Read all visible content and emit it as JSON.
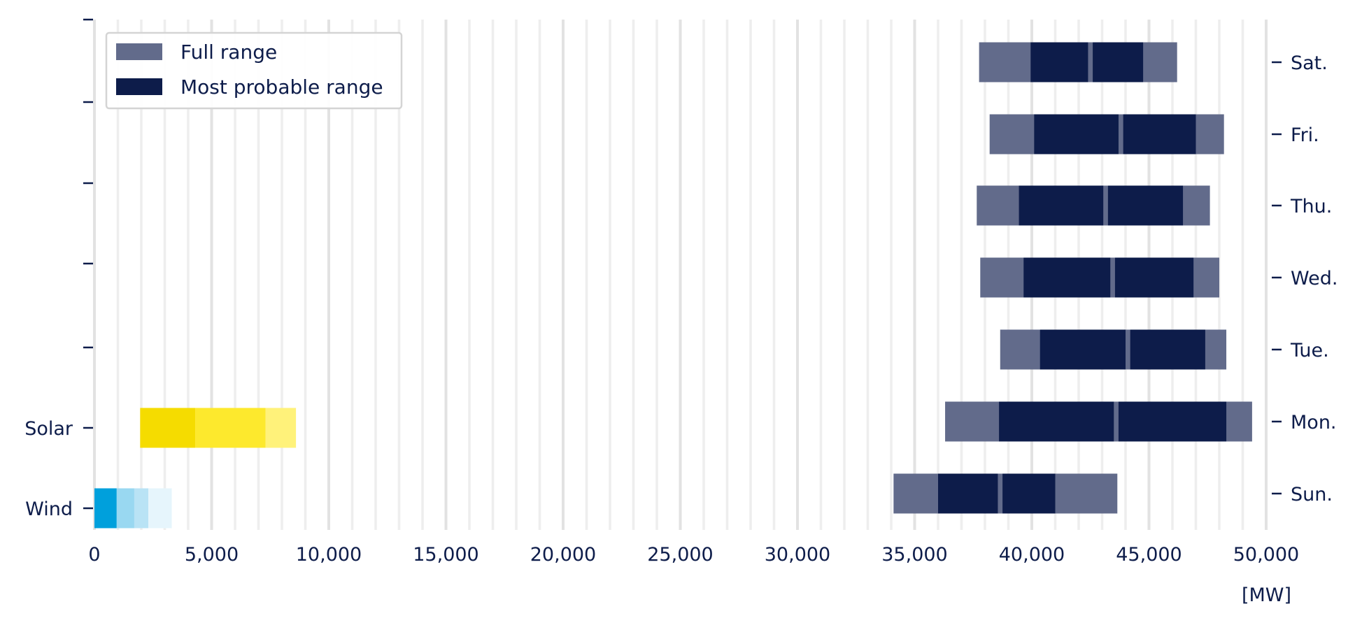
{
  "chart_data": {
    "type": "bar",
    "orientation": "horizontal",
    "xlabel": "[MW]",
    "xlim": [
      0,
      50000
    ],
    "xticks": [
      0,
      5000,
      10000,
      15000,
      20000,
      25000,
      30000,
      35000,
      40000,
      45000,
      50000
    ],
    "xtick_labels": [
      "0",
      "5,000",
      "10,000",
      "15,000",
      "20,000",
      "25,000",
      "30,000",
      "35,000",
      "40,000",
      "45,000",
      "50,000"
    ],
    "grid": true,
    "legend": {
      "placement": "top-left",
      "entries": [
        {
          "label": "Full range",
          "color": "#626b8b"
        },
        {
          "label": "Most probable range",
          "color": "#0d1c4a"
        }
      ]
    },
    "left_categories": [
      "Wind",
      "Solar"
    ],
    "right_categories": [
      "Sun.",
      "Mon.",
      "Tue.",
      "Wed.",
      "Thu.",
      "Fri.",
      "Sat."
    ],
    "renewables": [
      {
        "name": "Wind",
        "segments": [
          {
            "from": 0,
            "to": 950,
            "color": "#00a0dc"
          },
          {
            "from": 950,
            "to": 1700,
            "color": "#99d8f1"
          },
          {
            "from": 1700,
            "to": 2300,
            "color": "#b9e3f5"
          },
          {
            "from": 2300,
            "to": 3300,
            "color": "#e6f5fc"
          }
        ]
      },
      {
        "name": "Solar",
        "segments": [
          {
            "from": 1950,
            "to": 4300,
            "color": "#f5dc00"
          },
          {
            "from": 4300,
            "to": 7300,
            "color": "#fde92d"
          },
          {
            "from": 7300,
            "to": 8600,
            "color": "#fff27a"
          }
        ]
      }
    ],
    "demand": [
      {
        "day": "Sun.",
        "full": [
          34100,
          43650
        ],
        "probable": [
          [
            36000,
            38550
          ],
          [
            38750,
            41000
          ]
        ]
      },
      {
        "day": "Mon.",
        "full": [
          36300,
          49400
        ],
        "probable": [
          [
            38600,
            43500
          ],
          [
            43700,
            48300
          ]
        ]
      },
      {
        "day": "Tue.",
        "full": [
          38650,
          48300
        ],
        "probable": [
          [
            40350,
            44000
          ],
          [
            44200,
            47400
          ]
        ]
      },
      {
        "day": "Wed.",
        "full": [
          37800,
          48000
        ],
        "probable": [
          [
            39650,
            43350
          ],
          [
            43550,
            46900
          ]
        ]
      },
      {
        "day": "Thu.",
        "full": [
          37650,
          47600
        ],
        "probable": [
          [
            39450,
            43050
          ],
          [
            43250,
            46450
          ]
        ]
      },
      {
        "day": "Fri.",
        "full": [
          38200,
          48200
        ],
        "probable": [
          [
            40100,
            43700
          ],
          [
            43900,
            47000
          ]
        ]
      },
      {
        "day": "Sat.",
        "full": [
          37750,
          46200
        ],
        "probable": [
          [
            39950,
            42400
          ],
          [
            42600,
            44750
          ]
        ]
      }
    ]
  }
}
